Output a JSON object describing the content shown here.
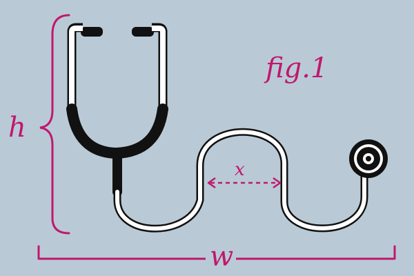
{
  "figure": {
    "label": "fig.1",
    "variables": {
      "height": "h",
      "width": "w",
      "spacing": "x"
    }
  },
  "colors": {
    "background": "#b9cad6",
    "annotation": "#c0186f",
    "tube_black": "#111111",
    "tube_white": "#ffffff",
    "earpiece": "#111111"
  },
  "icons": [
    "stethoscope-icon",
    "chest-piece-icon",
    "earpiece-icon",
    "brace-icon",
    "double-arrow-icon"
  ]
}
